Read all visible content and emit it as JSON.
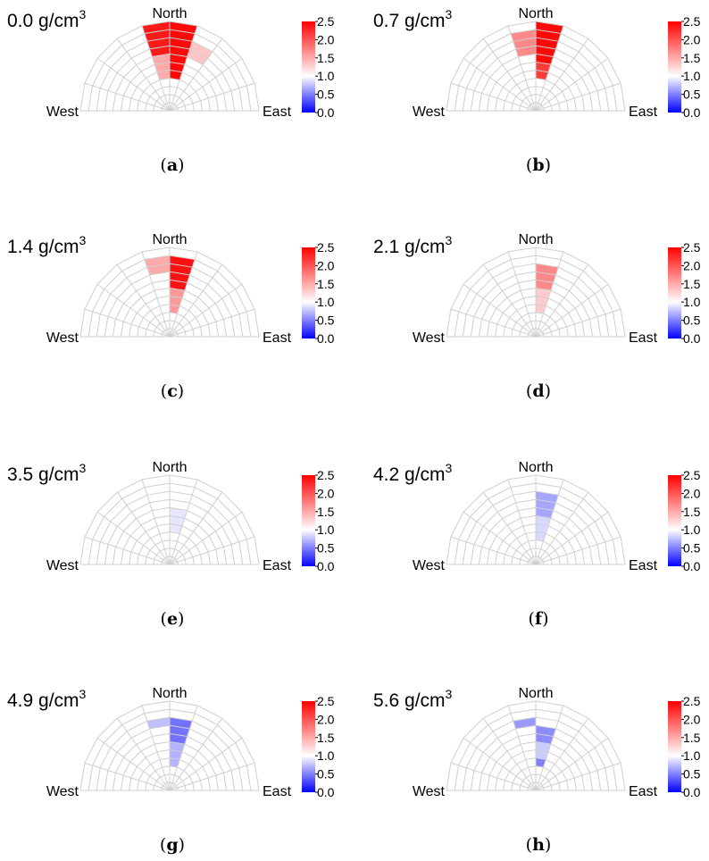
{
  "figure": {
    "colors": {
      "low": "#0000ff",
      "mid": "#ffffff",
      "high": "#ff0000",
      "grid": "#cfcfcf"
    },
    "colorbar": {
      "ticks": [
        "2.5",
        "2.0",
        "1.5",
        "1.0",
        "0.5",
        "0.0"
      ],
      "range": [
        0.0,
        2.5
      ]
    }
  },
  "chart_data": [
    {
      "type": "polar-heatmap",
      "caption_letter": "a",
      "title": "0.0 g/cm",
      "title_sup": "3",
      "direction_labels": {
        "north": "North",
        "west": "West",
        "east": "East"
      },
      "cells": [
        {
          "sector": 4,
          "r_from": 7,
          "r_to": 11,
          "value": 2.35
        },
        {
          "sector": 4,
          "r_from": 4,
          "r_to": 7,
          "value": 1.5
        },
        {
          "sector": 5,
          "r_from": 4,
          "r_to": 11,
          "value": 2.45
        },
        {
          "sector": 6,
          "r_from": 7,
          "r_to": 9,
          "value": 1.35
        }
      ]
    },
    {
      "type": "polar-heatmap",
      "caption_letter": "b",
      "title": "0.7 g/cm",
      "title_sup": "3",
      "direction_labels": {
        "north": "North",
        "west": "West",
        "east": "East"
      },
      "cells": [
        {
          "sector": 4,
          "r_from": 7,
          "r_to": 10,
          "value": 1.7
        },
        {
          "sector": 5,
          "r_from": 4,
          "r_to": 6,
          "value": 2.15
        },
        {
          "sector": 5,
          "r_from": 6,
          "r_to": 11,
          "value": 2.45
        }
      ]
    },
    {
      "type": "polar-heatmap",
      "caption_letter": "c",
      "title": "1.4 g/cm",
      "title_sup": "3",
      "direction_labels": {
        "north": "North",
        "west": "West",
        "east": "East"
      },
      "cells": [
        {
          "sector": 4,
          "r_from": 8,
          "r_to": 10,
          "value": 1.5
        },
        {
          "sector": 5,
          "r_from": 3,
          "r_to": 6,
          "value": 1.6
        },
        {
          "sector": 5,
          "r_from": 6,
          "r_to": 10,
          "value": 2.4
        }
      ]
    },
    {
      "type": "polar-heatmap",
      "caption_letter": "d",
      "title": "2.1 g/cm",
      "title_sup": "3",
      "direction_labels": {
        "north": "North",
        "west": "West",
        "east": "East"
      },
      "cells": [
        {
          "sector": 5,
          "r_from": 3,
          "r_to": 6,
          "value": 1.3
        },
        {
          "sector": 5,
          "r_from": 6,
          "r_to": 9,
          "value": 1.7
        }
      ]
    },
    {
      "type": "polar-heatmap",
      "caption_letter": "e",
      "title": "3.5 g/cm",
      "title_sup": "3",
      "direction_labels": {
        "north": "North",
        "west": "West",
        "east": "East"
      },
      "cells": [
        {
          "sector": 5,
          "r_from": 4,
          "r_to": 7,
          "value": 0.9
        }
      ]
    },
    {
      "type": "polar-heatmap",
      "caption_letter": "f",
      "title": "4.2 g/cm",
      "title_sup": "3",
      "direction_labels": {
        "north": "North",
        "west": "West",
        "east": "East"
      },
      "cells": [
        {
          "sector": 5,
          "r_from": 3,
          "r_to": 6,
          "value": 0.85
        },
        {
          "sector": 5,
          "r_from": 6,
          "r_to": 9,
          "value": 0.65
        }
      ]
    },
    {
      "type": "polar-heatmap",
      "caption_letter": "g",
      "title": "4.9 g/cm",
      "title_sup": "3",
      "direction_labels": {
        "north": "North",
        "west": "West",
        "east": "East"
      },
      "cells": [
        {
          "sector": 4,
          "r_from": 8,
          "r_to": 9,
          "value": 0.75
        },
        {
          "sector": 5,
          "r_from": 3,
          "r_to": 6,
          "value": 0.7
        },
        {
          "sector": 5,
          "r_from": 6,
          "r_to": 9,
          "value": 0.45
        }
      ]
    },
    {
      "type": "polar-heatmap",
      "caption_letter": "h",
      "title": "5.6 g/cm",
      "title_sup": "3",
      "direction_labels": {
        "north": "North",
        "west": "West",
        "east": "East"
      },
      "cells": [
        {
          "sector": 4,
          "r_from": 8,
          "r_to": 9,
          "value": 0.6
        },
        {
          "sector": 5,
          "r_from": 3,
          "r_to": 4,
          "value": 0.5
        },
        {
          "sector": 5,
          "r_from": 4,
          "r_to": 6,
          "value": 0.8
        },
        {
          "sector": 5,
          "r_from": 6,
          "r_to": 8,
          "value": 0.55
        }
      ]
    }
  ]
}
